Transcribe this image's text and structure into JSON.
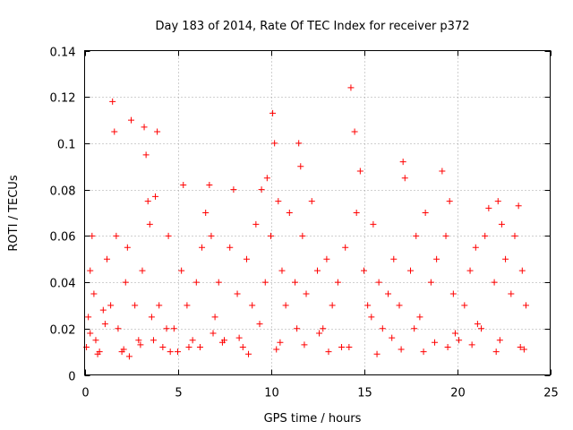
{
  "chart_data": {
    "type": "scatter",
    "title": "Day 183 of 2014, Rate Of TEC Index for receiver p372",
    "xlabel": "GPS time / hours",
    "ylabel": "ROTI / TECUs",
    "xlim": [
      0,
      25
    ],
    "ylim": [
      0,
      0.14
    ],
    "xticks": [
      0,
      5,
      10,
      15,
      20,
      25
    ],
    "xtick_labels": [
      "0",
      "5",
      "10",
      "15",
      "20",
      "25"
    ],
    "yticks": [
      0,
      0.02,
      0.04,
      0.06,
      0.08,
      0.1,
      0.12,
      0.14
    ],
    "ytick_labels": [
      "0",
      "0.02",
      "0.04",
      "0.06",
      "0.08",
      "0.1",
      "0.12",
      "0.14"
    ],
    "grid": true,
    "marker": "+",
    "color": "#ff0000",
    "series": [
      {
        "name": "ROTI",
        "x": [
          0.1,
          0.2,
          0.3,
          0.4,
          0.5,
          0.6,
          0.8,
          1.0,
          1.2,
          1.4,
          1.5,
          1.6,
          1.7,
          1.8,
          2.0,
          2.2,
          2.3,
          2.5,
          2.7,
          2.9,
          3.1,
          3.2,
          3.3,
          3.4,
          3.5,
          3.6,
          3.8,
          3.9,
          4.0,
          4.2,
          4.5,
          4.8,
          5.0,
          5.2,
          5.3,
          5.5,
          5.8,
          6.0,
          6.3,
          6.5,
          6.7,
          6.8,
          7.0,
          7.2,
          7.5,
          7.8,
          8.0,
          8.2,
          8.5,
          8.7,
          9.0,
          9.2,
          9.5,
          9.7,
          9.8,
          10.0,
          10.1,
          10.2,
          10.4,
          10.6,
          10.8,
          11.0,
          11.3,
          11.5,
          11.6,
          11.7,
          11.9,
          12.2,
          12.5,
          12.8,
          13.0,
          13.3,
          13.6,
          14.0,
          14.3,
          14.5,
          14.6,
          14.8,
          15.0,
          15.2,
          15.5,
          15.8,
          16.0,
          16.3,
          16.6,
          16.9,
          17.1,
          17.2,
          17.5,
          17.8,
          18.0,
          18.3,
          18.6,
          18.9,
          19.2,
          19.4,
          19.6,
          19.8,
          20.1,
          20.4,
          20.7,
          21.0,
          21.3,
          21.5,
          21.7,
          22.0,
          22.2,
          22.4,
          22.6,
          22.9,
          23.1,
          23.3,
          23.5,
          23.7,
          0.3,
          1.1,
          2.4,
          3.7,
          4.4,
          5.6,
          6.9,
          8.3,
          9.4,
          10.5,
          11.4,
          12.6,
          13.8,
          15.4,
          16.5,
          17.7,
          18.8,
          19.9,
          21.1,
          22.3,
          23.4,
          0.7,
          2.1,
          3.0,
          4.6,
          6.2,
          7.4,
          8.8,
          10.3,
          11.8,
          13.1,
          14.2,
          15.7,
          17.0,
          18.2,
          19.5,
          20.8,
          22.1,
          23.6
        ],
        "y": [
          0.012,
          0.025,
          0.045,
          0.06,
          0.035,
          0.015,
          0.01,
          0.028,
          0.05,
          0.03,
          0.118,
          0.105,
          0.06,
          0.02,
          0.01,
          0.04,
          0.055,
          0.11,
          0.03,
          0.015,
          0.045,
          0.107,
          0.095,
          0.075,
          0.065,
          0.025,
          0.077,
          0.105,
          0.03,
          0.012,
          0.06,
          0.02,
          0.01,
          0.045,
          0.082,
          0.03,
          0.015,
          0.04,
          0.055,
          0.07,
          0.082,
          0.06,
          0.025,
          0.04,
          0.015,
          0.055,
          0.08,
          0.035,
          0.012,
          0.05,
          0.03,
          0.065,
          0.08,
          0.04,
          0.085,
          0.06,
          0.113,
          0.1,
          0.075,
          0.045,
          0.03,
          0.07,
          0.04,
          0.1,
          0.09,
          0.06,
          0.035,
          0.075,
          0.045,
          0.02,
          0.05,
          0.03,
          0.04,
          0.055,
          0.124,
          0.105,
          0.07,
          0.088,
          0.045,
          0.03,
          0.065,
          0.04,
          0.02,
          0.035,
          0.05,
          0.03,
          0.092,
          0.085,
          0.045,
          0.06,
          0.025,
          0.07,
          0.04,
          0.05,
          0.088,
          0.06,
          0.075,
          0.035,
          0.015,
          0.03,
          0.045,
          0.055,
          0.02,
          0.06,
          0.072,
          0.04,
          0.075,
          0.065,
          0.05,
          0.035,
          0.06,
          0.073,
          0.045,
          0.03,
          0.018,
          0.022,
          0.008,
          0.015,
          0.02,
          0.012,
          0.018,
          0.016,
          0.022,
          0.014,
          0.02,
          0.018,
          0.012,
          0.025,
          0.016,
          0.02,
          0.014,
          0.018,
          0.022,
          0.015,
          0.012,
          0.009,
          0.011,
          0.013,
          0.01,
          0.012,
          0.014,
          0.009,
          0.011,
          0.013,
          0.01,
          0.012,
          0.009,
          0.011,
          0.01,
          0.012,
          0.013,
          0.01,
          0.011
        ]
      }
    ]
  }
}
